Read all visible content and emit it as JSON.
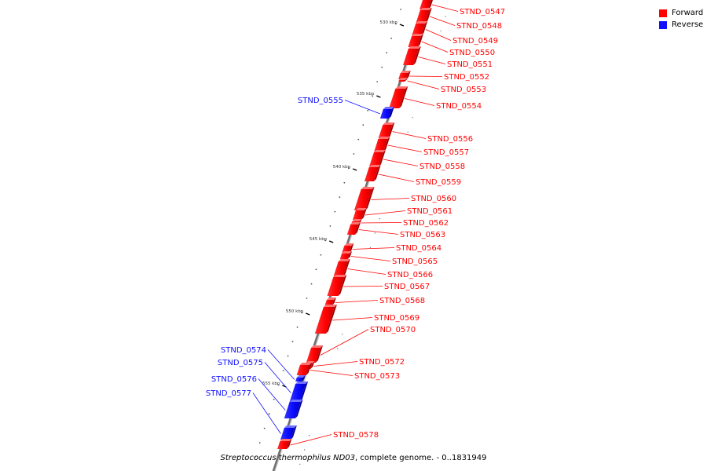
{
  "legend": {
    "forward_label": "Forward",
    "reverse_label": "Reverse",
    "forward_color": "#ff0000",
    "reverse_color": "#1010ff"
  },
  "caption": {
    "organism": "Streptococcus thermophilus ND03",
    "description": ", complete genome. - 0..1831949"
  },
  "scale_labels": [
    "530 kbp",
    "535 kbp",
    "540 kbp",
    "545 kbp",
    "550 kbp",
    "555 kbp"
  ],
  "genes": [
    {
      "name": "STND_0547",
      "strand": "forward"
    },
    {
      "name": "STND_0548",
      "strand": "forward"
    },
    {
      "name": "STND_0549",
      "strand": "forward"
    },
    {
      "name": "STND_0550",
      "strand": "forward"
    },
    {
      "name": "STND_0551",
      "strand": "forward"
    },
    {
      "name": "STND_0552",
      "strand": "forward"
    },
    {
      "name": "STND_0553",
      "strand": "forward"
    },
    {
      "name": "STND_0554",
      "strand": "forward"
    },
    {
      "name": "STND_0555",
      "strand": "reverse"
    },
    {
      "name": "STND_0556",
      "strand": "forward"
    },
    {
      "name": "STND_0557",
      "strand": "forward"
    },
    {
      "name": "STND_0558",
      "strand": "forward"
    },
    {
      "name": "STND_0559",
      "strand": "forward"
    },
    {
      "name": "STND_0560",
      "strand": "forward"
    },
    {
      "name": "STND_0561",
      "strand": "forward"
    },
    {
      "name": "STND_0562",
      "strand": "forward"
    },
    {
      "name": "STND_0563",
      "strand": "forward"
    },
    {
      "name": "STND_0564",
      "strand": "forward"
    },
    {
      "name": "STND_0565",
      "strand": "forward"
    },
    {
      "name": "STND_0566",
      "strand": "forward"
    },
    {
      "name": "STND_0567",
      "strand": "forward"
    },
    {
      "name": "STND_0568",
      "strand": "forward"
    },
    {
      "name": "STND_0569",
      "strand": "forward"
    },
    {
      "name": "STND_0570",
      "strand": "forward"
    },
    {
      "name": "STND_0572",
      "strand": "forward"
    },
    {
      "name": "STND_0573",
      "strand": "forward"
    },
    {
      "name": "STND_0574",
      "strand": "reverse"
    },
    {
      "name": "STND_0575",
      "strand": "reverse"
    },
    {
      "name": "STND_0576",
      "strand": "reverse"
    },
    {
      "name": "STND_0577",
      "strand": "reverse"
    },
    {
      "name": "STND_0578",
      "strand": "forward"
    }
  ]
}
